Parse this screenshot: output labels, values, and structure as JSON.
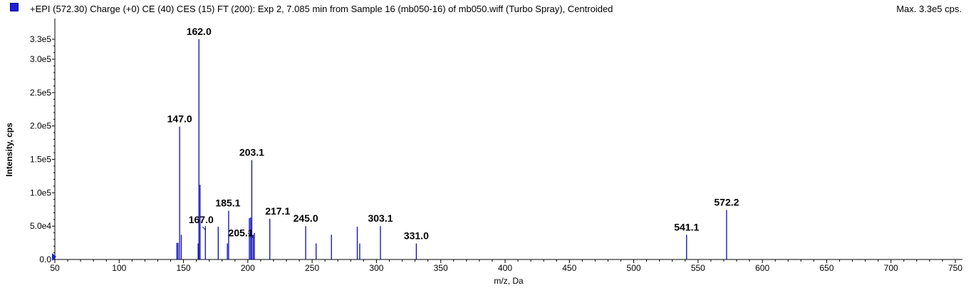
{
  "header": {
    "title": "+EPI (572.30) Charge (+0) CE (40) CES (15) FT (200): Exp 2, 7.085 min from Sample 16 (mb050-16) of mb050.wiff (Turbo Spray), Centroided",
    "max_label": "Max. 3.3e5 cps."
  },
  "colors": {
    "series": "#0a0ab4",
    "axis": "#000000",
    "swatch": "#1f1fd0"
  },
  "chart_data": {
    "type": "bar",
    "xlabel": "m/z, Da",
    "ylabel": "Intensity, cps",
    "xlim": [
      50,
      755
    ],
    "ylim": [
      0,
      330000
    ],
    "grid": false,
    "x_ticks": [
      50,
      100,
      150,
      200,
      250,
      300,
      350,
      400,
      450,
      500,
      550,
      600,
      650,
      700,
      750
    ],
    "x_tick_labels": [
      "50",
      "100",
      "150",
      "200",
      "250",
      "300",
      "350",
      "400",
      "450",
      "500",
      "550",
      "600",
      "650",
      "700",
      "750"
    ],
    "y_ticks": [
      0,
      50000,
      100000,
      150000,
      200000,
      250000,
      300000,
      330000
    ],
    "y_tick_labels": [
      "0.0",
      "5.0e4",
      "1.0e5",
      "1.5e5",
      "2.0e5",
      "2.5e5",
      "3.0e5",
      "3.3e5"
    ],
    "peaks": [
      {
        "mz": 144.9,
        "intensity": 25000
      },
      {
        "mz": 145.8,
        "intensity": 25000
      },
      {
        "mz": 147.0,
        "intensity": 199000,
        "label": "147.0"
      },
      {
        "mz": 148.3,
        "intensity": 37000
      },
      {
        "mz": 161.4,
        "intensity": 24000
      },
      {
        "mz": 162.0,
        "intensity": 330000,
        "label": "162.0"
      },
      {
        "mz": 162.9,
        "intensity": 112000
      },
      {
        "mz": 167.0,
        "intensity": 50000,
        "label": "167.0"
      },
      {
        "mz": 177.0,
        "intensity": 49000
      },
      {
        "mz": 184.1,
        "intensity": 24000
      },
      {
        "mz": 185.1,
        "intensity": 73000,
        "label": "185.1"
      },
      {
        "mz": 201.2,
        "intensity": 62000
      },
      {
        "mz": 202.2,
        "intensity": 63000
      },
      {
        "mz": 203.1,
        "intensity": 149000,
        "label": "203.1"
      },
      {
        "mz": 204.2,
        "intensity": 37000
      },
      {
        "mz": 205.1,
        "intensity": 40000,
        "label": "205.1"
      },
      {
        "mz": 217.1,
        "intensity": 61000,
        "label": "217.1"
      },
      {
        "mz": 245.0,
        "intensity": 50000,
        "label": "245.0"
      },
      {
        "mz": 253.1,
        "intensity": 24000
      },
      {
        "mz": 265.0,
        "intensity": 37000
      },
      {
        "mz": 285.1,
        "intensity": 49000
      },
      {
        "mz": 287.0,
        "intensity": 24000
      },
      {
        "mz": 303.1,
        "intensity": 50000,
        "label": "303.1"
      },
      {
        "mz": 331.0,
        "intensity": 24000,
        "label": "331.0"
      },
      {
        "mz": 541.1,
        "intensity": 37000,
        "label": "541.1"
      },
      {
        "mz": 572.2,
        "intensity": 74000,
        "label": "572.2"
      }
    ]
  }
}
